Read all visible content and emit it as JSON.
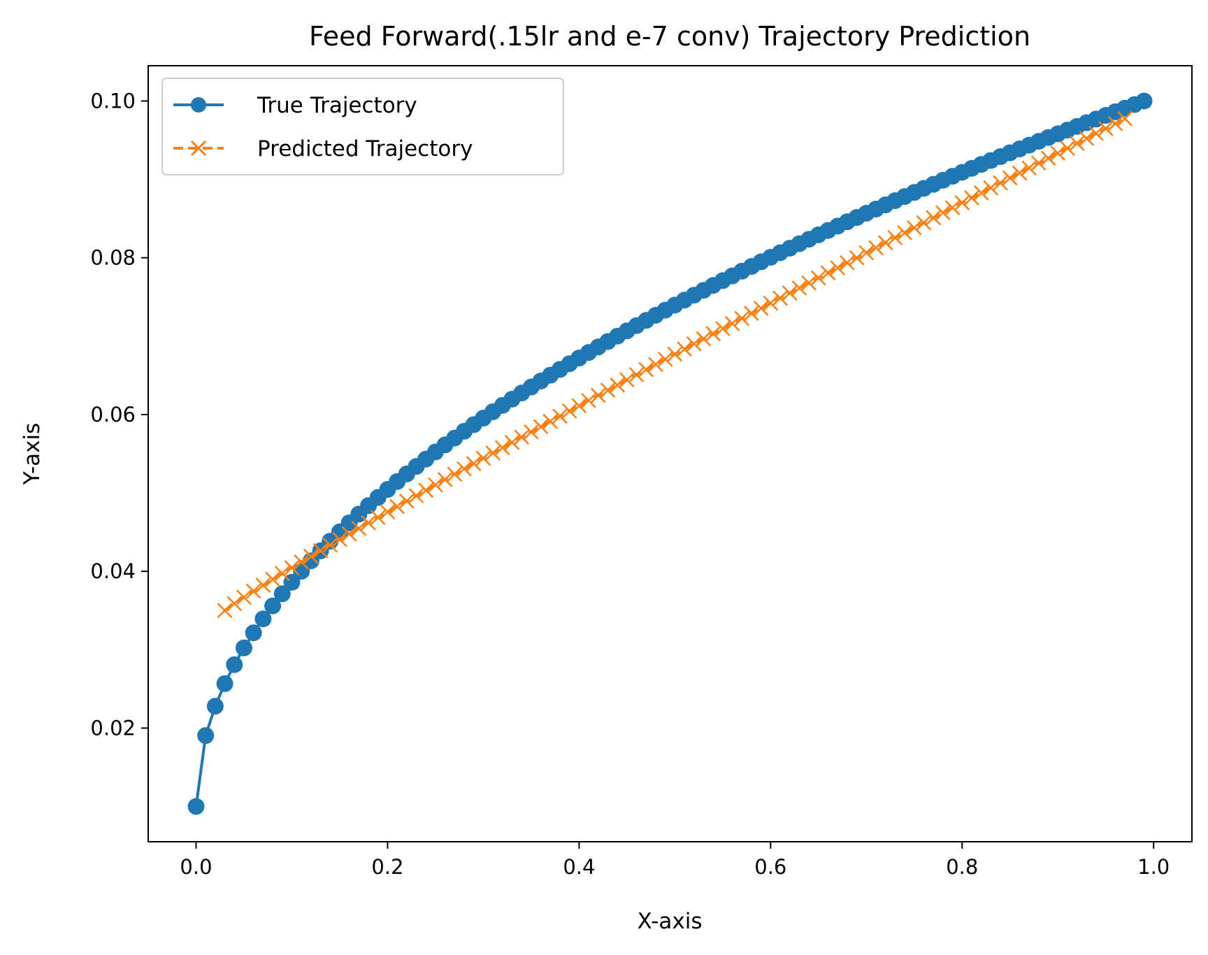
{
  "chart_data": {
    "type": "line",
    "title": "Feed Forward(.15lr and e-7 conv) Trajectory Prediction",
    "xlabel": "X-axis",
    "ylabel": "Y-axis",
    "xlim": [
      -0.05,
      1.04
    ],
    "ylim": [
      0.0055,
      0.1045
    ],
    "x_ticks": [
      "0.0",
      "0.2",
      "0.4",
      "0.6",
      "0.8",
      "1.0"
    ],
    "y_ticks": [
      "0.02",
      "0.04",
      "0.06",
      "0.08",
      "0.10"
    ],
    "grid": false,
    "legend_placement": "upper-left",
    "series": [
      {
        "name": "True Trajectory",
        "color": "#1f77b4",
        "marker": "circle",
        "line_style": "solid",
        "x_start": 0.0,
        "x_step": 0.01,
        "count": 100,
        "y_formula": "0.01 + 0.09*sqrt(x/0.99)"
      },
      {
        "name": "Predicted Trajectory",
        "color": "#ff7f0e",
        "marker": "x",
        "line_style": "dashed",
        "x_start": 0.03,
        "x_step": 0.01,
        "count": 95,
        "y_formula": "0.035 + 0.0665*(x-0.03)^0.94"
      }
    ]
  }
}
